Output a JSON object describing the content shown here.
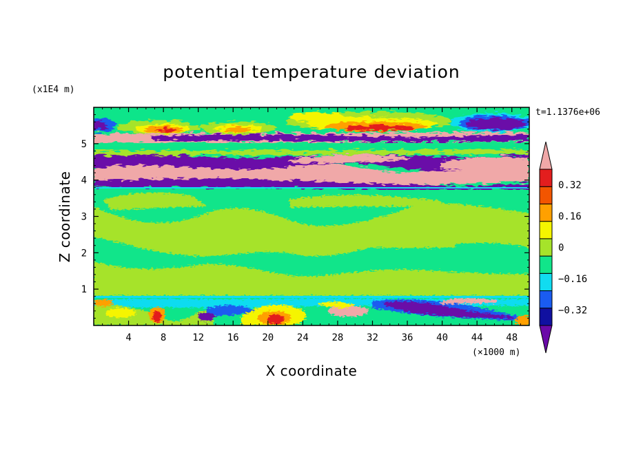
{
  "chart_data": {
    "type": "heatmap",
    "title": "potential temperature deviation",
    "xlabel": "X coordinate",
    "ylabel": "Z coordinate",
    "x_unit": "(×1000 m)",
    "y_unit": "(x1E4 m)",
    "time_label": "t=1.1376e+06",
    "xlim": [
      0,
      50
    ],
    "ylim": [
      0,
      6
    ],
    "x_ticks": [
      4,
      8,
      12,
      16,
      20,
      24,
      28,
      32,
      36,
      40,
      44,
      48
    ],
    "y_ticks": [
      1,
      2,
      3,
      4,
      5
    ],
    "colorbar": {
      "levels": [
        -0.4,
        -0.32,
        -0.24,
        -0.16,
        -0.08,
        0,
        0.08,
        0.16,
        0.24,
        0.32,
        0.4
      ],
      "colors": [
        "#6a0aa8",
        "#1010a0",
        "#1a5cf0",
        "#11dcf0",
        "#11e58a",
        "#a6e32a",
        "#f5f500",
        "#ffa000",
        "#f25500",
        "#e31e1e",
        "#f0a8a8"
      ],
      "tick_labels": [
        "0.32",
        "0.16",
        "0",
        "-0.16",
        "-0.32"
      ],
      "tick_values": [
        0.32,
        0.16,
        0,
        -0.16,
        -0.32
      ]
    },
    "grid": false,
    "legend": "right"
  }
}
